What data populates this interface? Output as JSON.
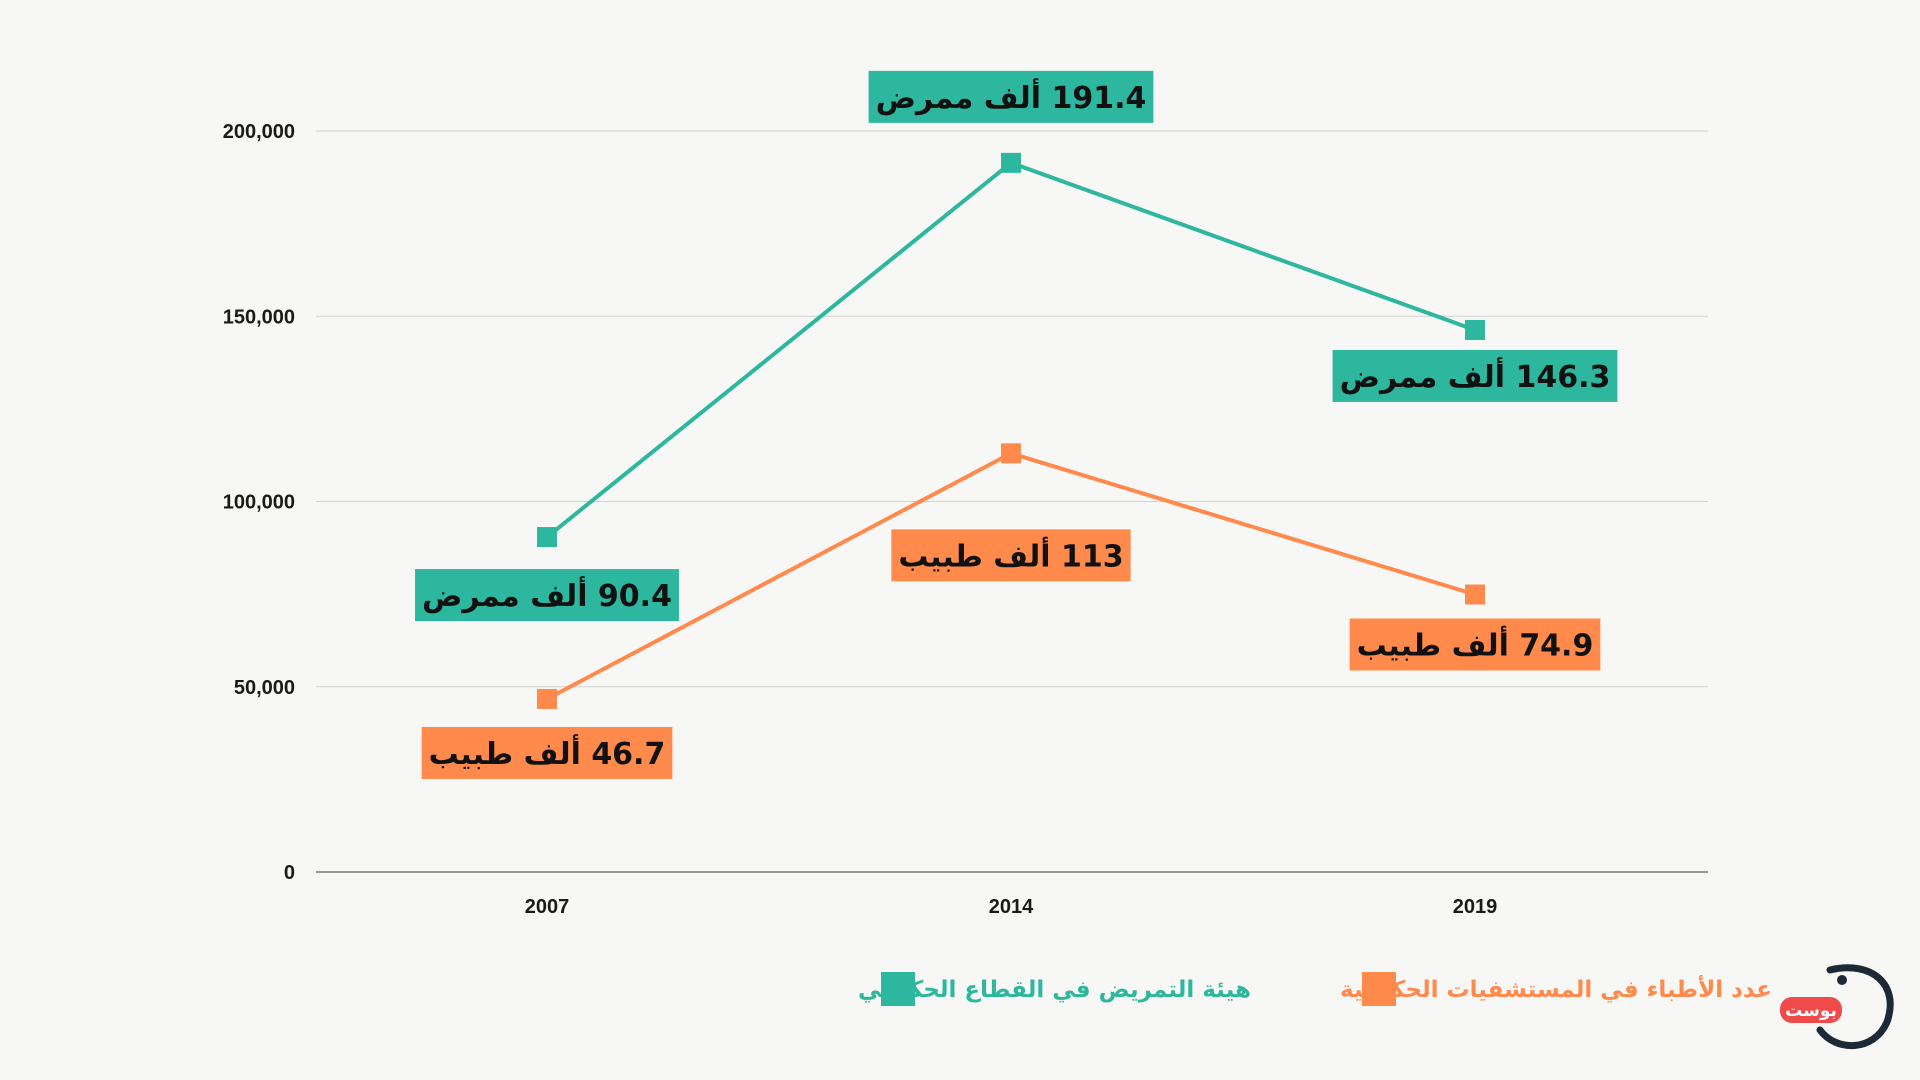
{
  "chart_data": {
    "type": "line",
    "x": [
      "2007",
      "2014",
      "2019"
    ],
    "ylim": [
      0,
      200000
    ],
    "yticks": [
      "0",
      "50,000",
      "100,000",
      "150,000",
      "200,000"
    ],
    "grid": true,
    "legend_position": "bottom",
    "series": [
      {
        "name": "هيئة التمريض في القطاع الحكومي",
        "color": "#2db79e",
        "values": [
          90400,
          191400,
          146300
        ],
        "labels": [
          "90.4 ألف ممرض",
          "191.4 ألف ممرض",
          "146.3 ألف ممرض"
        ]
      },
      {
        "name": "عدد الأطباء في المستشفيات الحكومية",
        "color": "#ff8a4c",
        "values": [
          46700,
          113000,
          74900
        ],
        "labels": [
          "46.7 ألف طبيب",
          "113 ألف طبيب",
          "74.9 ألف طبيب"
        ]
      }
    ]
  },
  "logo": {
    "text": "بوست",
    "accent_color": "#ef4b4b",
    "mark_color": "#1d2a36"
  }
}
